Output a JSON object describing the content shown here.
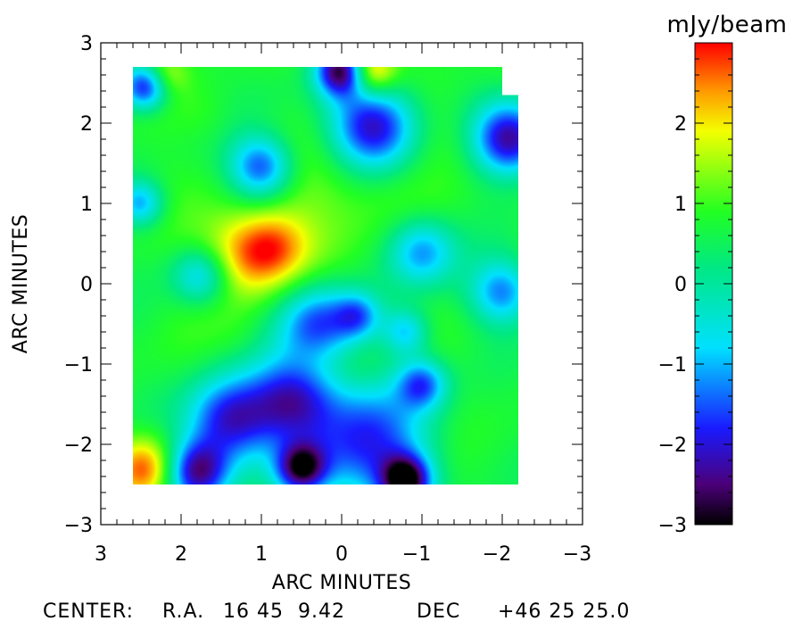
{
  "chart_data": [
    {
      "type": "heatmap",
      "title": "",
      "xlabel": "ARC MINUTES",
      "ylabel": "ARC MINUTES",
      "xlim": [
        3,
        -3
      ],
      "ylim": [
        -3,
        3
      ],
      "x_ticks": [
        {
          "value": 3,
          "label": "3"
        },
        {
          "value": 2,
          "label": "2"
        },
        {
          "value": 1,
          "label": "1"
        },
        {
          "value": 0,
          "label": "0"
        },
        {
          "value": -1,
          "label": "−1"
        },
        {
          "value": -2,
          "label": "−2"
        },
        {
          "value": -3,
          "label": "−3"
        }
      ],
      "y_ticks": [
        {
          "value": 3,
          "label": "3"
        },
        {
          "value": 2,
          "label": "2"
        },
        {
          "value": 1,
          "label": "1"
        },
        {
          "value": 0,
          "label": "0"
        },
        {
          "value": -1,
          "label": "−1"
        },
        {
          "value": -2,
          "label": "−2"
        },
        {
          "value": -3,
          "label": "−3"
        }
      ],
      "map_extent": {
        "x": [
          2.6,
          -2.2
        ],
        "y": [
          -2.5,
          2.7
        ]
      },
      "map_notch": {
        "x_from": -2.0,
        "y_from": 2.35
      },
      "blobs": [
        {
          "x": 1.25,
          "y": 0.35,
          "r": 0.38,
          "v": 2.3
        },
        {
          "x": 0.85,
          "y": 0.45,
          "r": 0.3,
          "v": 2.0
        },
        {
          "x": 0.4,
          "y": 0.95,
          "r": 0.55,
          "v": 1.2
        },
        {
          "x": -0.3,
          "y": 1.3,
          "r": 0.45,
          "v": 1.1
        },
        {
          "x": -1.3,
          "y": 1.8,
          "r": 0.35,
          "v": 1.1
        },
        {
          "x": 2.45,
          "y": -2.3,
          "r": 0.28,
          "v": 2.8
        },
        {
          "x": -0.35,
          "y": 2.65,
          "r": 0.22,
          "v": 2.9
        },
        {
          "x": 2.2,
          "y": 2.6,
          "r": 0.18,
          "v": 1.6
        },
        {
          "x": 1.7,
          "y": 2.1,
          "r": 0.25,
          "v": 1.0
        },
        {
          "x": 0.3,
          "y": -0.9,
          "r": 0.25,
          "v": 1.0
        },
        {
          "x": -0.2,
          "y": -1.0,
          "r": 0.22,
          "v": 1.0
        },
        {
          "x": 1.3,
          "y": -0.65,
          "r": 0.25,
          "v": 0.9
        },
        {
          "x": 0.0,
          "y": 2.65,
          "r": 0.22,
          "v": -2.7
        },
        {
          "x": -0.4,
          "y": 1.95,
          "r": 0.38,
          "v": -2.3
        },
        {
          "x": 1.0,
          "y": 1.45,
          "r": 0.28,
          "v": -1.7
        },
        {
          "x": 1.4,
          "y": -1.7,
          "r": 0.38,
          "v": -2.0
        },
        {
          "x": 0.6,
          "y": -1.45,
          "r": 0.38,
          "v": -1.8
        },
        {
          "x": 0.3,
          "y": -0.5,
          "r": 0.35,
          "v": -1.6
        },
        {
          "x": -0.3,
          "y": -2.0,
          "r": 0.55,
          "v": -1.7
        },
        {
          "x": 1.8,
          "y": -2.35,
          "r": 0.28,
          "v": -2.4
        },
        {
          "x": 0.5,
          "y": -2.3,
          "r": 0.22,
          "v": -2.2
        },
        {
          "x": -0.8,
          "y": -2.45,
          "r": 0.22,
          "v": -2.6
        },
        {
          "x": -2.1,
          "y": 1.8,
          "r": 0.32,
          "v": -2.4
        },
        {
          "x": 2.45,
          "y": 2.45,
          "r": 0.2,
          "v": -2.0
        },
        {
          "x": -1.0,
          "y": 0.4,
          "r": 0.3,
          "v": -1.2
        },
        {
          "x": -2.0,
          "y": -0.1,
          "r": 0.28,
          "v": -1.2
        },
        {
          "x": -1.0,
          "y": -1.25,
          "r": 0.22,
          "v": -1.3
        },
        {
          "x": 2.5,
          "y": 1.0,
          "r": 0.2,
          "v": -1.0
        },
        {
          "x": 1.75,
          "y": 0.1,
          "r": 0.25,
          "v": -1.0
        },
        {
          "x": -0.2,
          "y": -0.4,
          "r": 0.2,
          "v": -0.8
        },
        {
          "x": -0.8,
          "y": -0.6,
          "r": 0.2,
          "v": -0.8
        },
        {
          "x": 0.9,
          "y": 2.4,
          "r": 0.3,
          "v": 0.6
        },
        {
          "x": -1.5,
          "y": -0.2,
          "r": 0.35,
          "v": 0.6
        }
      ],
      "colorbar": {
        "label": "mJy/beam",
        "range": [
          -3,
          3
        ],
        "ticks": [
          {
            "value": 2,
            "label": "2"
          },
          {
            "value": 1,
            "label": "1"
          },
          {
            "value": 0,
            "label": "0"
          },
          {
            "value": -1,
            "label": "−1"
          },
          {
            "value": -2,
            "label": "−2"
          },
          {
            "value": -3,
            "label": "−3"
          }
        ],
        "stops": [
          {
            "v": -3.0,
            "color": "#000000"
          },
          {
            "v": -2.5,
            "color": "#4b0078"
          },
          {
            "v": -1.8,
            "color": "#1a1aff"
          },
          {
            "v": -0.8,
            "color": "#00e0ff"
          },
          {
            "v": 0.2,
            "color": "#00e884"
          },
          {
            "v": 0.9,
            "color": "#22ff22"
          },
          {
            "v": 1.9,
            "color": "#f4ff00"
          },
          {
            "v": 2.4,
            "color": "#ff9900"
          },
          {
            "v": 3.0,
            "color": "#ff0000"
          }
        ]
      }
    }
  ],
  "caption": {
    "center_label": "CENTER:",
    "ra_label": "R.A.",
    "ra_value": "16 45  9.42",
    "dec_label": "DEC",
    "dec_value": "+46 25 25.0"
  }
}
